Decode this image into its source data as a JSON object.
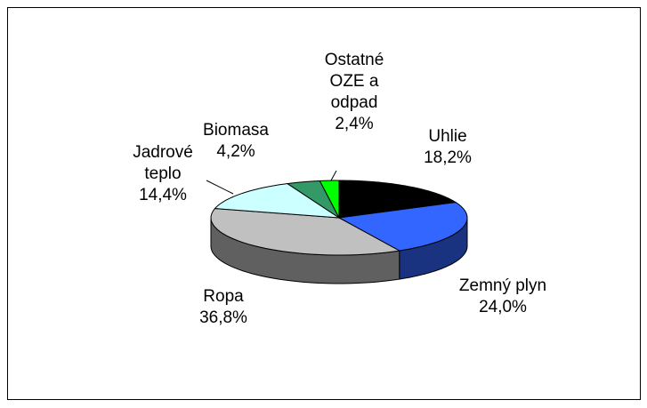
{
  "chart_data": {
    "type": "pie3d",
    "categories": [
      "Uhlie",
      "Zemný plyn",
      "Ropa",
      "Jadrové teplo",
      "Biomasa",
      "Ostatné OZE a odpad"
    ],
    "values": [
      18.2,
      24.0,
      36.8,
      14.4,
      4.2,
      2.4
    ],
    "value_labels": [
      "18,2%",
      "24,0%",
      "36,8%",
      "14,4%",
      "4,2%",
      "2,4%"
    ],
    "colors": [
      "#000000",
      "#3366ff",
      "#c0c0c0",
      "#ccffff",
      "#339966",
      "#00ff00"
    ]
  }
}
